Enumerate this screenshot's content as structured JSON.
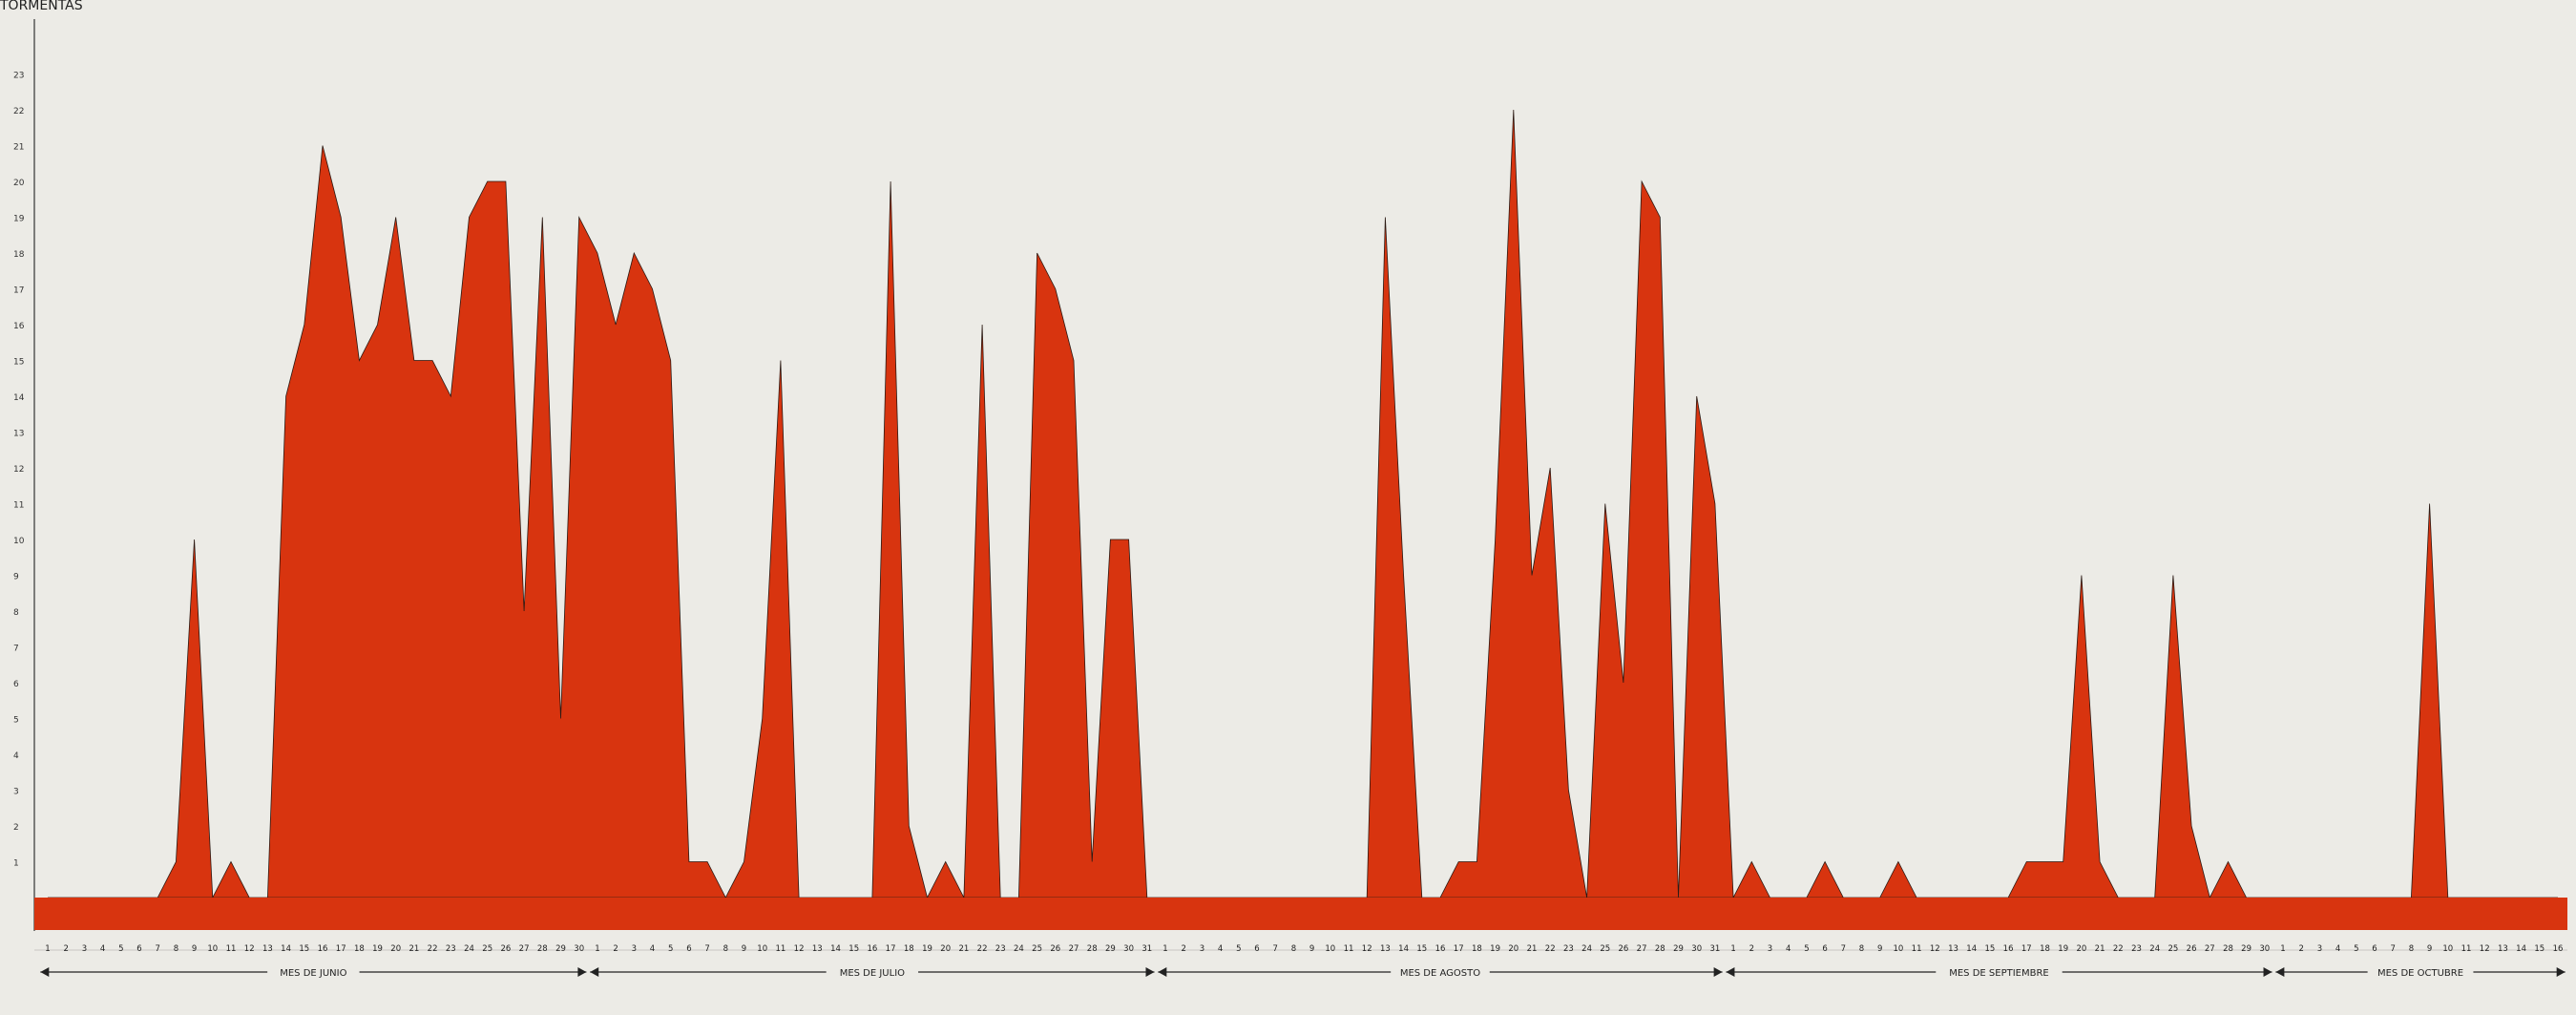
{
  "chart_data": {
    "type": "area",
    "title": "TORMENTAS",
    "xlabel": "",
    "ylabel": "TORMENTAS",
    "ylim": [
      0,
      24
    ],
    "yticks": [
      1,
      2,
      3,
      4,
      5,
      6,
      7,
      8,
      9,
      10,
      11,
      12,
      13,
      14,
      15,
      16,
      17,
      18,
      19,
      20,
      21,
      22,
      23
    ],
    "grid": false,
    "colors": {
      "fill": "#d8340f",
      "stroke": "#2b1a14",
      "background": "#ecebe6"
    },
    "months": [
      {
        "label": "MES DE JUNIO",
        "days": 30
      },
      {
        "label": "MES DE JULIO",
        "days": 31
      },
      {
        "label": "MES DE AGOSTO",
        "days": 31
      },
      {
        "label": "MES DE SEPTIEMBRE",
        "days": 30
      },
      {
        "label": "MES DE OCTUBRE",
        "days": 16
      }
    ],
    "x": [
      "1",
      "2",
      "3",
      "4",
      "5",
      "6",
      "7",
      "8",
      "9",
      "10",
      "11",
      "12",
      "13",
      "14",
      "15",
      "16",
      "17",
      "18",
      "19",
      "20",
      "21",
      "22",
      "23",
      "24",
      "25",
      "26",
      "27",
      "28",
      "29",
      "30",
      "1",
      "2",
      "3",
      "4",
      "5",
      "6",
      "7",
      "8",
      "9",
      "10",
      "11",
      "12",
      "13",
      "14",
      "15",
      "16",
      "17",
      "18",
      "19",
      "20",
      "21",
      "22",
      "23",
      "24",
      "25",
      "26",
      "27",
      "28",
      "29",
      "30",
      "31",
      "1",
      "2",
      "3",
      "4",
      "5",
      "6",
      "7",
      "8",
      "9",
      "10",
      "11",
      "12",
      "13",
      "14",
      "15",
      "16",
      "17",
      "18",
      "19",
      "20",
      "21",
      "22",
      "23",
      "24",
      "25",
      "26",
      "27",
      "28",
      "29",
      "30",
      "31",
      "1",
      "2",
      "3",
      "4",
      "5",
      "6",
      "7",
      "8",
      "9",
      "10",
      "11",
      "12",
      "13",
      "14",
      "15",
      "16",
      "17",
      "18",
      "19",
      "20",
      "21",
      "22",
      "23",
      "24",
      "25",
      "26",
      "27",
      "28",
      "29",
      "30",
      "1",
      "2",
      "3",
      "4",
      "5",
      "6",
      "7",
      "8",
      "9",
      "10",
      "11",
      "12",
      "13",
      "14",
      "15",
      "16"
    ],
    "series": [
      {
        "values": [
          0,
          0,
          0,
          0,
          0,
          0,
          0,
          1,
          10,
          0,
          1,
          0,
          0,
          14,
          16,
          21,
          19,
          15,
          16,
          19,
          15,
          15,
          14,
          19,
          20,
          20,
          8,
          19,
          5,
          19,
          18,
          16,
          18,
          17,
          15,
          1,
          1,
          0,
          1,
          5,
          15,
          0,
          0,
          0,
          0,
          0,
          20,
          2,
          0,
          1,
          0,
          16,
          0,
          0,
          18,
          17,
          15,
          1,
          10,
          10,
          0,
          0,
          0,
          0,
          0,
          0,
          0,
          0,
          0,
          0,
          0,
          0,
          0,
          19,
          9,
          0,
          0,
          1,
          1,
          10,
          22,
          9,
          12,
          3,
          0,
          11,
          6,
          20,
          19,
          0,
          14,
          11,
          0,
          1,
          0,
          0,
          0,
          1,
          0,
          0,
          0,
          1,
          0,
          0,
          0,
          0,
          0,
          0,
          1,
          1,
          1,
          9,
          1,
          0,
          0,
          0,
          9,
          2,
          0,
          1,
          0,
          0,
          0,
          0,
          0,
          0,
          0,
          0,
          0,
          0,
          11,
          0,
          0,
          0,
          0,
          0,
          0,
          0
        ]
      }
    ]
  }
}
